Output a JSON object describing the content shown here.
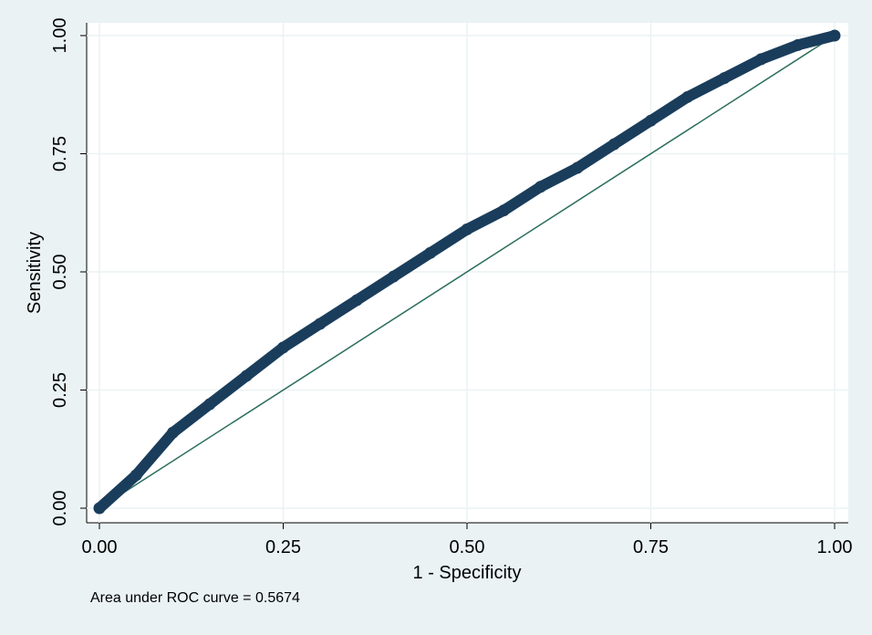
{
  "chart_data": {
    "type": "line",
    "xlabel": "1 - Specificity",
    "ylabel": "Sensitivity",
    "note": "Area under ROC curve = 0.5674",
    "x": [
      0,
      0.05,
      0.1,
      0.15,
      0.2,
      0.25,
      0.3,
      0.35,
      0.4,
      0.45,
      0.5,
      0.55,
      0.6,
      0.65,
      0.7,
      0.75,
      0.8,
      0.85,
      0.9,
      0.95,
      1
    ],
    "values": [
      0,
      0.07,
      0.16,
      0.22,
      0.28,
      0.34,
      0.39,
      0.44,
      0.49,
      0.54,
      0.59,
      0.63,
      0.68,
      0.72,
      0.77,
      0.82,
      0.87,
      0.91,
      0.95,
      0.98,
      1
    ],
    "color": "#1a3d5c",
    "xlim": [
      0,
      1
    ],
    "ylim": [
      0,
      1
    ],
    "xticks": [
      {
        "value": 0,
        "label": "0.00"
      },
      {
        "value": 0.25,
        "label": "0.25"
      },
      {
        "value": 0.5,
        "label": "0.50"
      },
      {
        "value": 0.75,
        "label": "0.75"
      },
      {
        "value": 1,
        "label": "1.00"
      }
    ],
    "yticks": [
      {
        "value": 0,
        "label": "0.00"
      },
      {
        "value": 0.25,
        "label": "0.25"
      },
      {
        "value": 0.5,
        "label": "0.50"
      },
      {
        "value": 0.75,
        "label": "0.75"
      },
      {
        "value": 1,
        "label": "1.00"
      }
    ],
    "grid": true
  }
}
